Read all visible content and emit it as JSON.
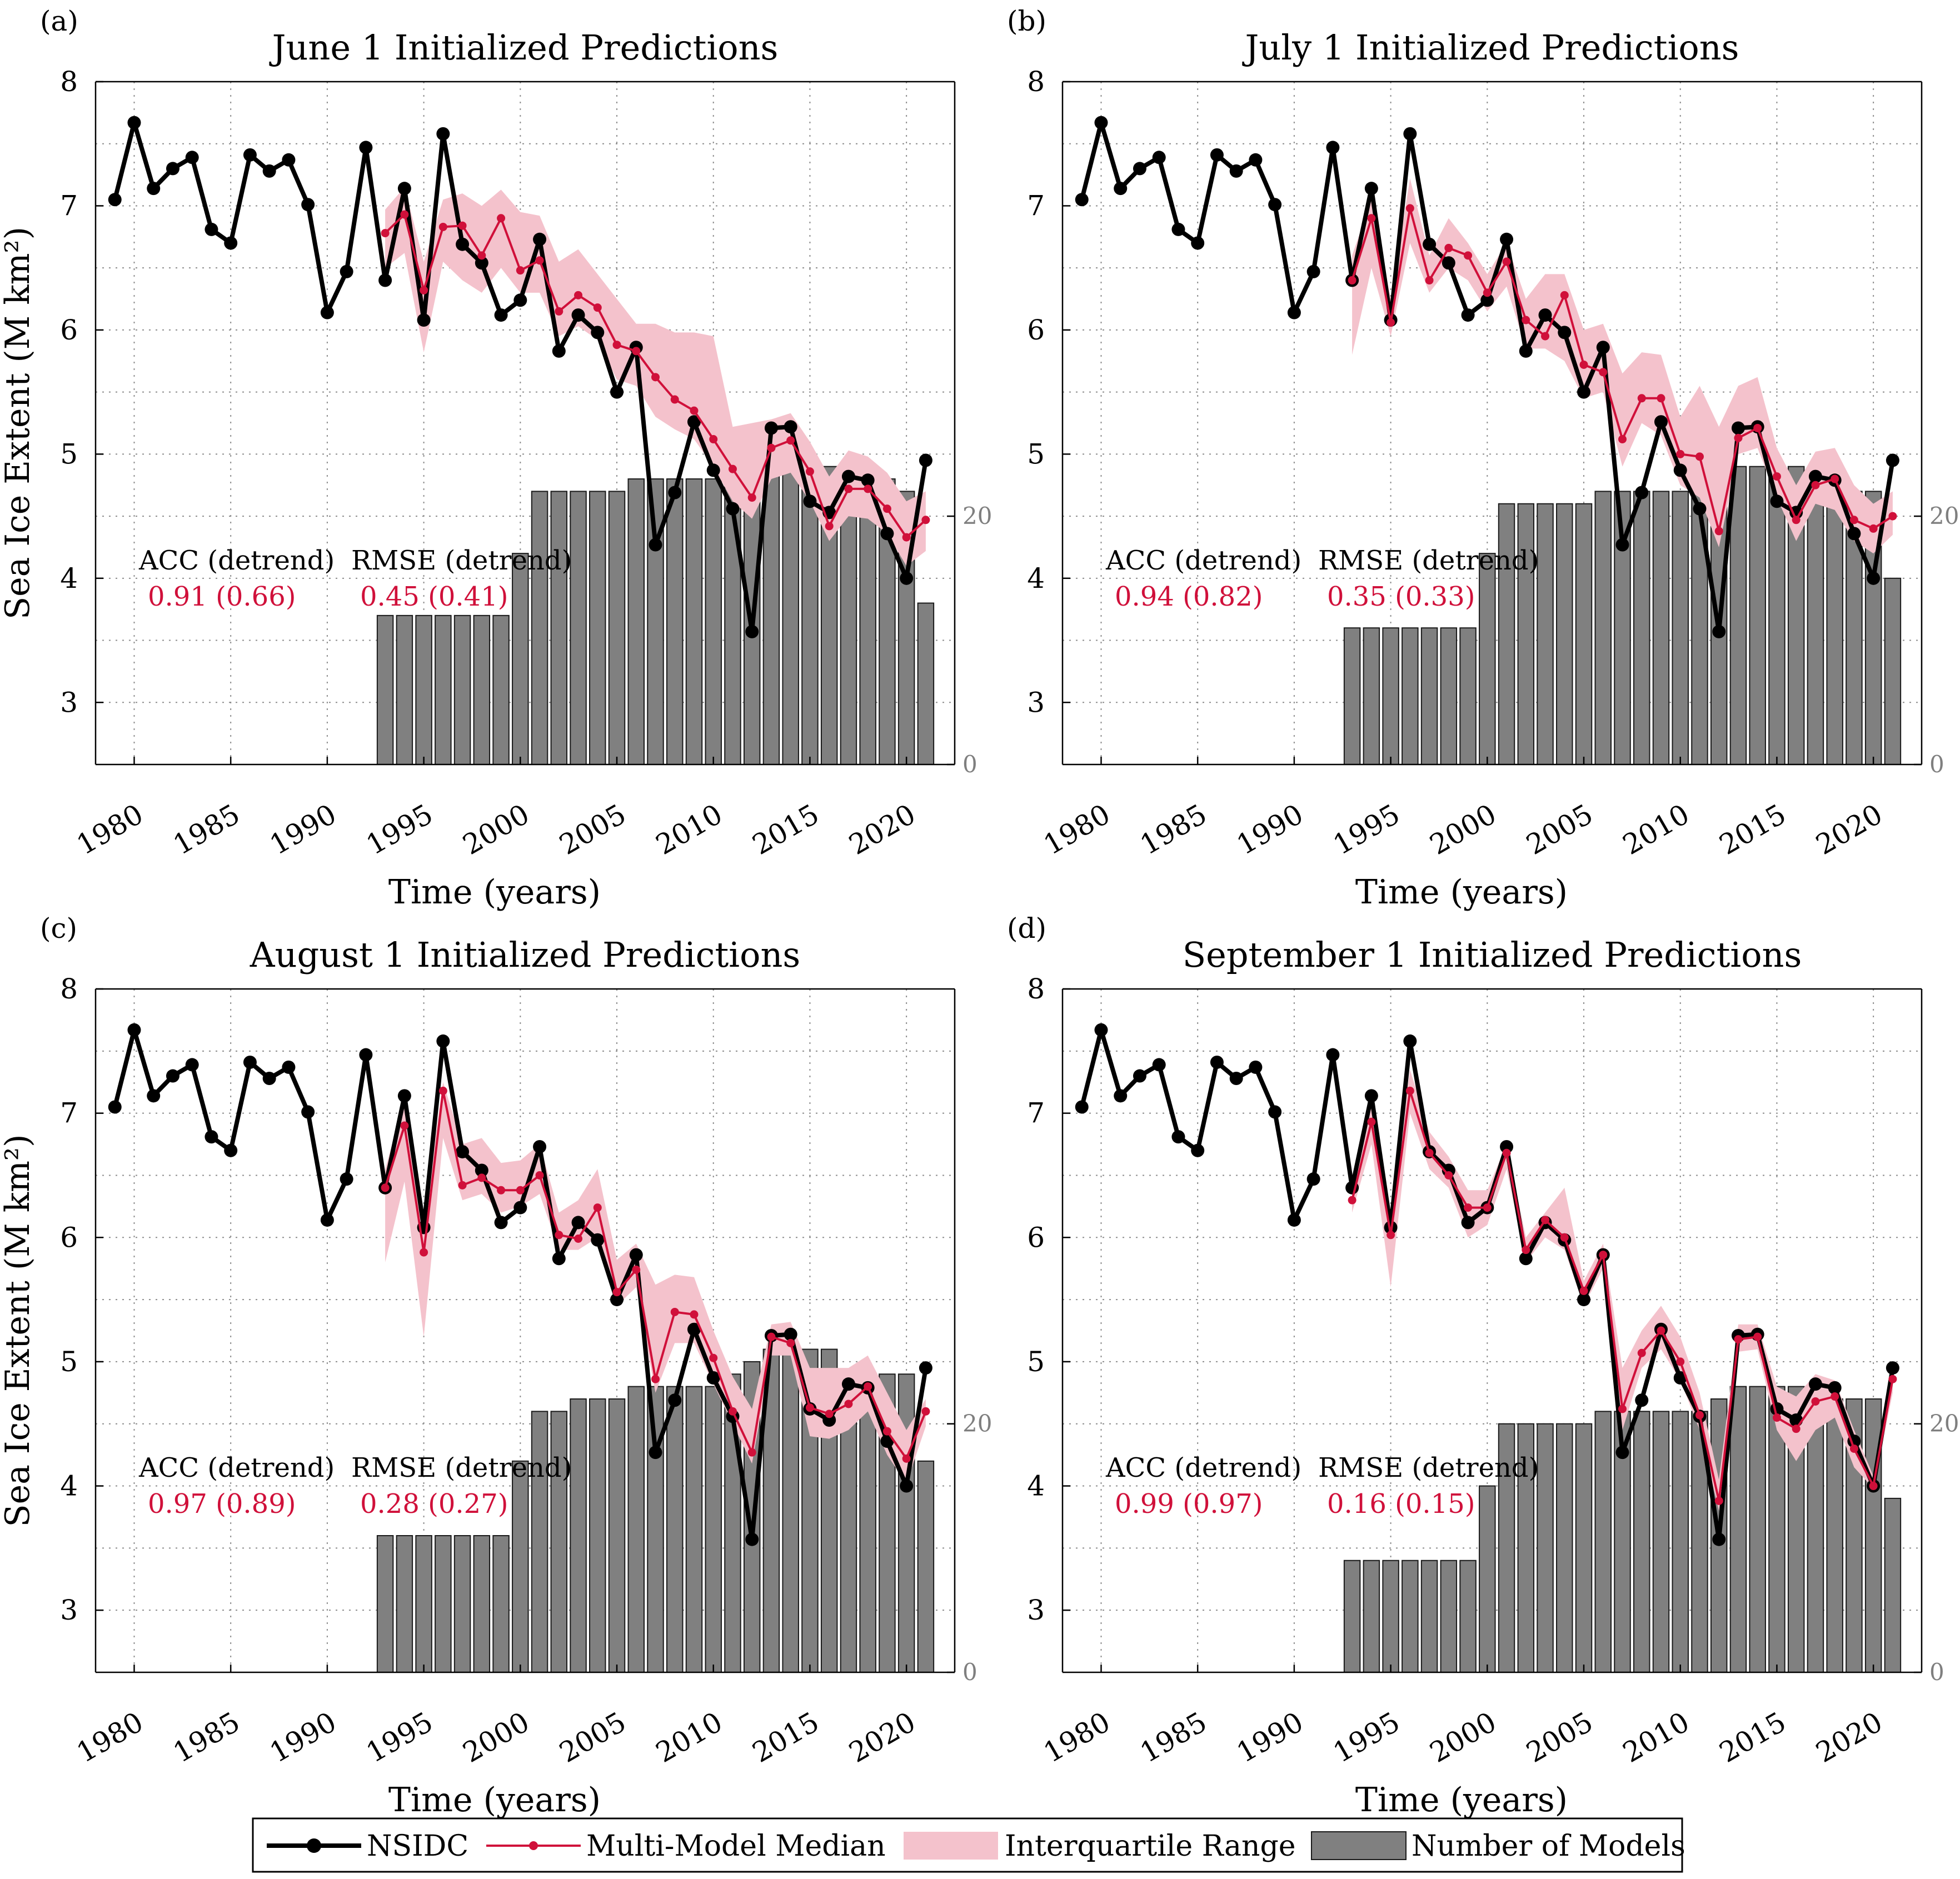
{
  "figure": {
    "xlabel": "Time (years)",
    "ylabel": "Sea Ice Extent (M km²)",
    "stat_headers": {
      "acc": "ACC (detrend)",
      "rmse": "RMSE (detrend)"
    },
    "legend": [
      "NSIDC",
      "Multi-Model Median",
      "Interquartile Range",
      "Number of Models"
    ],
    "colors": {
      "observed": "#000000",
      "median": "#d0103a",
      "iqr": "#f4c2cc",
      "bars": "#808080",
      "grid": "#8c8c8c"
    }
  },
  "chart_data": [
    {
      "type": "line",
      "panel_label": "(a)",
      "title": "June 1 Initialized Predictions",
      "acc": "0.91 (0.66)",
      "rmse": "0.45 (0.41)",
      "xlim": [
        1978,
        2022.5
      ],
      "ylim": [
        2.5,
        8
      ],
      "x_ticks": [
        1980,
        1985,
        1990,
        1995,
        2000,
        2005,
        2010,
        2015,
        2020
      ],
      "y_ticks": [
        3,
        4,
        5,
        6,
        7,
        8
      ],
      "right_axis_ticks": [
        0,
        20
      ],
      "right_axis_max": 55,
      "observed": {
        "name": "NSIDC",
        "x_start": 1979,
        "values": [
          7.05,
          7.67,
          7.14,
          7.3,
          7.39,
          6.81,
          6.7,
          7.41,
          7.28,
          7.37,
          7.01,
          6.14,
          6.47,
          7.47,
          6.4,
          7.14,
          6.08,
          7.58,
          6.69,
          6.54,
          6.12,
          6.24,
          6.73,
          5.83,
          6.12,
          5.98,
          5.5,
          5.86,
          4.27,
          4.69,
          5.26,
          4.87,
          4.56,
          3.57,
          5.21,
          5.22,
          4.62,
          4.53,
          4.82,
          4.79,
          4.36,
          4.0,
          4.95
        ]
      },
      "median": {
        "name": "Multi-Model Median",
        "x_start": 1993,
        "values": [
          6.78,
          6.93,
          6.32,
          6.83,
          6.84,
          6.6,
          6.9,
          6.48,
          6.56,
          6.15,
          6.28,
          6.18,
          5.88,
          5.83,
          5.62,
          5.44,
          5.35,
          5.12,
          4.88,
          4.65,
          5.05,
          5.11,
          4.86,
          4.42,
          4.72,
          4.72,
          4.56,
          4.33,
          4.47
        ]
      },
      "iqr_low": [
        6.5,
        6.62,
        5.82,
        6.55,
        6.4,
        6.3,
        6.5,
        6.3,
        6.3,
        5.95,
        6.03,
        5.92,
        5.6,
        5.55,
        5.3,
        5.2,
        5.12,
        4.9,
        4.62,
        4.48,
        4.8,
        4.85,
        4.62,
        4.3,
        4.5,
        4.48,
        4.36,
        4.1,
        4.22
      ],
      "iqr_high": [
        6.97,
        7.15,
        6.55,
        7.05,
        7.1,
        7.0,
        7.13,
        6.95,
        6.92,
        6.55,
        6.65,
        6.45,
        6.25,
        6.05,
        6.05,
        5.98,
        5.98,
        5.95,
        5.22,
        5.25,
        5.28,
        5.33,
        5.1,
        4.82,
        5.03,
        4.98,
        4.85,
        4.62,
        4.7
      ],
      "num_models": {
        "name": "Number of Models",
        "x_start": 1993,
        "values": [
          12,
          12,
          12,
          12,
          12,
          12,
          12,
          17,
          22,
          22,
          22,
          22,
          22,
          23,
          23,
          23,
          23,
          23,
          23,
          24,
          25,
          25,
          24,
          24,
          23,
          23,
          23,
          22,
          13
        ]
      }
    },
    {
      "type": "line",
      "panel_label": "(b)",
      "title": "July 1 Initialized Predictions",
      "acc": "0.94 (0.82)",
      "rmse": "0.35 (0.33)",
      "xlim": [
        1978,
        2022.5
      ],
      "ylim": [
        2.5,
        8
      ],
      "x_ticks": [
        1980,
        1985,
        1990,
        1995,
        2000,
        2005,
        2010,
        2015,
        2020
      ],
      "y_ticks": [
        3,
        4,
        5,
        6,
        7,
        8
      ],
      "right_axis_ticks": [
        0,
        20
      ],
      "right_axis_max": 55,
      "observed": {
        "name": "NSIDC",
        "x_start": 1979,
        "values": [
          7.05,
          7.67,
          7.14,
          7.3,
          7.39,
          6.81,
          6.7,
          7.41,
          7.28,
          7.37,
          7.01,
          6.14,
          6.47,
          7.47,
          6.4,
          7.14,
          6.08,
          7.58,
          6.69,
          6.54,
          6.12,
          6.24,
          6.73,
          5.83,
          6.12,
          5.98,
          5.5,
          5.86,
          4.27,
          4.69,
          5.26,
          4.87,
          4.56,
          3.57,
          5.21,
          5.22,
          4.62,
          4.53,
          4.82,
          4.79,
          4.36,
          4.0,
          4.95
        ]
      },
      "median": {
        "name": "Multi-Model Median",
        "x_start": 1993,
        "values": [
          6.4,
          6.9,
          6.06,
          6.98,
          6.4,
          6.66,
          6.6,
          6.3,
          6.55,
          6.08,
          5.95,
          6.28,
          5.72,
          5.66,
          5.12,
          5.45,
          5.45,
          5.0,
          4.98,
          4.38,
          5.13,
          5.21,
          4.82,
          4.47,
          4.75,
          4.8,
          4.47,
          4.4,
          4.5
        ]
      },
      "iqr_low": [
        5.8,
        6.5,
        5.95,
        6.7,
        6.3,
        6.5,
        6.4,
        6.15,
        6.35,
        5.85,
        5.85,
        5.75,
        5.45,
        5.5,
        4.9,
        5.25,
        5.15,
        4.75,
        4.65,
        4.25,
        5.0,
        5.05,
        4.65,
        4.3,
        4.6,
        4.55,
        4.3,
        4.2,
        4.35
      ],
      "iqr_high": [
        6.6,
        7.05,
        6.25,
        7.22,
        6.6,
        6.9,
        6.7,
        6.45,
        6.7,
        6.25,
        6.45,
        6.45,
        6.0,
        6.05,
        5.65,
        5.82,
        5.8,
        5.3,
        5.55,
        5.22,
        5.55,
        5.62,
        5.05,
        4.75,
        5.02,
        5.05,
        4.75,
        4.6,
        4.7
      ],
      "num_models": {
        "name": "Number of Models",
        "x_start": 1993,
        "values": [
          11,
          11,
          11,
          11,
          11,
          11,
          11,
          17,
          21,
          21,
          21,
          21,
          21,
          22,
          22,
          22,
          22,
          22,
          22,
          23,
          24,
          24,
          24,
          24,
          22,
          22,
          22,
          22,
          15
        ]
      }
    },
    {
      "type": "line",
      "panel_label": "(c)",
      "title": "August 1 Initialized Predictions",
      "acc": "0.97 (0.89)",
      "rmse": "0.28 (0.27)",
      "xlim": [
        1978,
        2022.5
      ],
      "ylim": [
        2.5,
        8
      ],
      "x_ticks": [
        1980,
        1985,
        1990,
        1995,
        2000,
        2005,
        2010,
        2015,
        2020
      ],
      "y_ticks": [
        3,
        4,
        5,
        6,
        7,
        8
      ],
      "right_axis_ticks": [
        0,
        20
      ],
      "right_axis_max": 55,
      "observed": {
        "name": "NSIDC",
        "x_start": 1979,
        "values": [
          7.05,
          7.67,
          7.14,
          7.3,
          7.39,
          6.81,
          6.7,
          7.41,
          7.28,
          7.37,
          7.01,
          6.14,
          6.47,
          7.47,
          6.4,
          7.14,
          6.08,
          7.58,
          6.69,
          6.54,
          6.12,
          6.24,
          6.73,
          5.83,
          6.12,
          5.98,
          5.5,
          5.86,
          4.27,
          4.69,
          5.26,
          4.87,
          4.56,
          3.57,
          5.21,
          5.22,
          4.62,
          4.53,
          4.82,
          4.79,
          4.36,
          4.0,
          4.95
        ]
      },
      "median": {
        "name": "Multi-Model Median",
        "x_start": 1993,
        "values": [
          6.4,
          6.9,
          5.88,
          7.18,
          6.42,
          6.48,
          6.38,
          6.38,
          6.5,
          6.02,
          5.99,
          6.24,
          5.56,
          5.74,
          4.86,
          5.4,
          5.38,
          5.03,
          4.6,
          4.27,
          5.2,
          5.15,
          4.63,
          4.58,
          4.66,
          4.8,
          4.44,
          4.22,
          4.6
        ]
      },
      "iqr_low": [
        5.8,
        6.45,
        5.2,
        6.8,
        6.3,
        6.35,
        6.2,
        6.25,
        6.35,
        5.9,
        5.9,
        6.0,
        5.45,
        5.6,
        4.75,
        5.15,
        5.15,
        4.82,
        4.5,
        4.18,
        5.05,
        5.05,
        4.4,
        4.38,
        4.45,
        4.6,
        4.25,
        4.02,
        4.48
      ],
      "iqr_high": [
        6.55,
        7.1,
        6.15,
        7.25,
        6.75,
        6.8,
        6.6,
        6.62,
        6.75,
        6.2,
        6.3,
        6.55,
        5.82,
        5.95,
        5.62,
        5.7,
        5.68,
        5.25,
        4.88,
        4.62,
        5.3,
        5.32,
        4.95,
        4.95,
        4.95,
        5.05,
        4.75,
        4.45,
        4.7
      ],
      "num_models": {
        "name": "Number of Models",
        "x_start": 1993,
        "values": [
          11,
          11,
          11,
          11,
          11,
          11,
          11,
          17,
          21,
          21,
          22,
          22,
          22,
          23,
          23,
          23,
          23,
          23,
          24,
          25,
          26,
          26,
          26,
          26,
          24,
          24,
          24,
          24,
          17
        ]
      }
    },
    {
      "type": "line",
      "panel_label": "(d)",
      "title": "September 1 Initialized Predictions",
      "acc": "0.99 (0.97)",
      "rmse": "0.16 (0.15)",
      "xlim": [
        1978,
        2022.5
      ],
      "ylim": [
        2.5,
        8
      ],
      "x_ticks": [
        1980,
        1985,
        1990,
        1995,
        2000,
        2005,
        2010,
        2015,
        2020
      ],
      "y_ticks": [
        3,
        4,
        5,
        6,
        7,
        8
      ],
      "right_axis_ticks": [
        0,
        20
      ],
      "right_axis_max": 55,
      "observed": {
        "name": "NSIDC",
        "x_start": 1979,
        "values": [
          7.05,
          7.67,
          7.14,
          7.3,
          7.39,
          6.81,
          6.7,
          7.41,
          7.28,
          7.37,
          7.01,
          6.14,
          6.47,
          7.47,
          6.4,
          7.14,
          6.08,
          7.58,
          6.69,
          6.54,
          6.12,
          6.24,
          6.73,
          5.83,
          6.12,
          5.98,
          5.5,
          5.86,
          4.27,
          4.69,
          5.26,
          4.87,
          4.56,
          3.57,
          5.21,
          5.22,
          4.62,
          4.53,
          4.82,
          4.79,
          4.36,
          4.0,
          4.95
        ]
      },
      "median": {
        "name": "Multi-Model Median",
        "x_start": 1993,
        "values": [
          6.3,
          6.93,
          6.02,
          7.18,
          6.68,
          6.5,
          6.24,
          6.24,
          6.68,
          5.9,
          6.14,
          6.0,
          5.57,
          5.86,
          4.62,
          5.07,
          5.25,
          5.0,
          4.57,
          3.88,
          5.18,
          5.2,
          4.55,
          4.46,
          4.68,
          4.72,
          4.3,
          4.0,
          4.86
        ]
      },
      "iqr_low": [
        6.2,
        6.75,
        5.6,
        7.0,
        6.55,
        6.4,
        6.0,
        6.1,
        6.55,
        5.8,
        6.0,
        5.9,
        5.45,
        5.75,
        4.45,
        4.95,
        5.1,
        4.85,
        4.45,
        3.8,
        5.08,
        5.1,
        4.45,
        4.2,
        4.45,
        4.55,
        4.15,
        3.98,
        4.75
      ],
      "iqr_high": [
        6.45,
        7.1,
        6.2,
        7.35,
        6.85,
        6.65,
        6.38,
        6.38,
        6.75,
        6.0,
        6.2,
        6.4,
        5.65,
        5.95,
        4.95,
        5.25,
        5.45,
        5.2,
        4.75,
        4.05,
        5.3,
        5.3,
        4.8,
        4.72,
        4.9,
        4.85,
        4.45,
        4.08,
        4.95
      ],
      "num_models": {
        "name": "Number of Models",
        "x_start": 1993,
        "values": [
          9,
          9,
          9,
          9,
          9,
          9,
          9,
          15,
          20,
          20,
          20,
          20,
          20,
          21,
          21,
          21,
          21,
          21,
          21,
          22,
          23,
          23,
          23,
          23,
          22,
          22,
          22,
          22,
          14
        ]
      }
    }
  ]
}
